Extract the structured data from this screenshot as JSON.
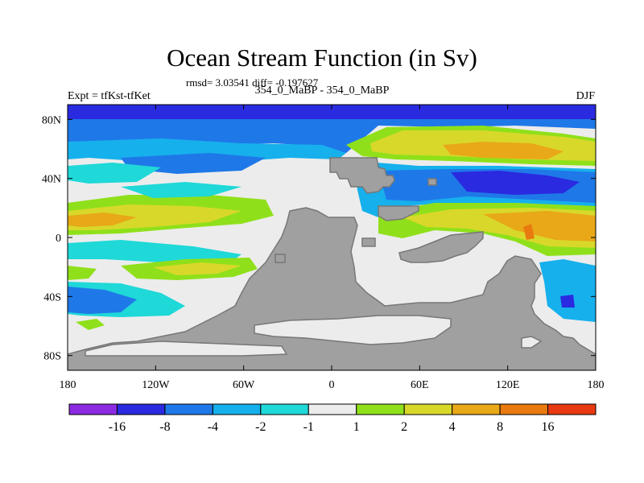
{
  "chart_data": {
    "type": "heatmap",
    "title": "Ocean Stream Function (in Sv)",
    "rmsd_text": "rmsd= 3.03541 diff= -0.197627",
    "left_label": "Expt = tfKst-tfKet",
    "center_label": "354_0_MaBP - 354_0_MaBP",
    "right_label": "DJF",
    "xlim": [
      -180,
      180
    ],
    "ylim": [
      -90,
      90
    ],
    "x_ticks": [
      {
        "value": -180,
        "label": "180"
      },
      {
        "value": -120,
        "label": "120W"
      },
      {
        "value": -60,
        "label": "60W"
      },
      {
        "value": 0,
        "label": "0"
      },
      {
        "value": 60,
        "label": "60E"
      },
      {
        "value": 120,
        "label": "120E"
      },
      {
        "value": 180,
        "label": "180"
      }
    ],
    "y_ticks": [
      {
        "value": 80,
        "label": "80N"
      },
      {
        "value": 40,
        "label": "40N"
      },
      {
        "value": 0,
        "label": "0"
      },
      {
        "value": -40,
        "label": "40S"
      },
      {
        "value": -80,
        "label": "80S"
      }
    ],
    "colorbar": {
      "levels": [
        "-16",
        "-8",
        "-4",
        "-2",
        "-1",
        "1",
        "2",
        "4",
        "8",
        "16"
      ],
      "colors": [
        "#8a2be2",
        "#2a2ae0",
        "#1f78e8",
        "#16b0ec",
        "#1fd8d8",
        "#ececec",
        "#8fe01a",
        "#d8d82a",
        "#e8a818",
        "#e87a10",
        "#e83a10"
      ]
    },
    "land_color": "#a0a0a0"
  }
}
